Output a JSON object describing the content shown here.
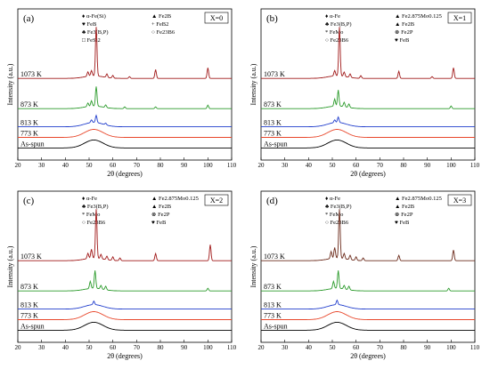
{
  "chart_data": [
    {
      "type": "line",
      "panel_label": "(a)",
      "box_label": "X=0",
      "xlabel": "2θ (degrees)",
      "ylabel": "Intensity (a.u.)",
      "xlim": [
        20,
        110
      ],
      "x_ticks": [
        "20",
        "30",
        "40",
        "50",
        "60",
        "70",
        "80",
        "90",
        "100",
        "110"
      ],
      "legend": [
        {
          "sym": "♦",
          "text": "α-Fe(Si)"
        },
        {
          "sym": "♥",
          "text": "FeB"
        },
        {
          "sym": "♣",
          "text": "Fe3(B,P)"
        },
        {
          "sym": "□",
          "text": "FeSi2"
        },
        {
          "sym": "▲",
          "text": "Fe2B"
        },
        {
          "sym": "+",
          "text": "FeB2"
        },
        {
          "sym": "○",
          "text": "Fe23B6"
        }
      ],
      "series": [
        {
          "name": "As-spun",
          "color": "#000000",
          "kind": "amorphous",
          "peaks": []
        },
        {
          "name": "773 K",
          "color": "#e8462a",
          "kind": "amorphous",
          "peaks": []
        },
        {
          "name": "813 K",
          "color": "#1f3ccc",
          "kind": "partial",
          "peaks": [
            [
              53,
              8
            ],
            [
              51,
              3
            ],
            [
              57,
              2
            ]
          ]
        },
        {
          "name": "873 K",
          "color": "#2a9a2a",
          "kind": "crystal",
          "peaks": [
            [
              53,
              22
            ],
            [
              51,
              6
            ],
            [
              49.5,
              4
            ],
            [
              57,
              3
            ],
            [
              65,
              2
            ],
            [
              78,
              2
            ],
            [
              100,
              4
            ]
          ]
        },
        {
          "name": "1073 K",
          "color": "#a01818",
          "kind": "crystal",
          "peaks": [
            [
              53,
              55
            ],
            [
              51,
              6
            ],
            [
              49.5,
              5
            ],
            [
              57.5,
              4
            ],
            [
              60,
              3
            ],
            [
              67,
              2
            ],
            [
              78,
              10
            ],
            [
              100,
              12
            ]
          ]
        }
      ]
    },
    {
      "type": "line",
      "panel_label": "(b)",
      "box_label": "X=1",
      "xlabel": "2θ (degrees)",
      "ylabel": "Intensity (a.u.)",
      "xlim": [
        20,
        110
      ],
      "x_ticks": [
        "20",
        "30",
        "40",
        "50",
        "60",
        "70",
        "80",
        "90",
        "100",
        "110"
      ],
      "legend": [
        {
          "sym": "♦",
          "text": "α-Fe"
        },
        {
          "sym": "♣",
          "text": "Fe3(B,P)"
        },
        {
          "sym": "*",
          "text": "FeMo"
        },
        {
          "sym": "○",
          "text": "Fe23B6"
        },
        {
          "sym": "▲",
          "text": "Fe2.875Mo0.125"
        },
        {
          "sym": "▲",
          "text": "Fe2B"
        },
        {
          "sym": "⊗",
          "text": "Fe2P"
        },
        {
          "sym": "♥",
          "text": "FeB"
        }
      ],
      "series": [
        {
          "name": "As-spun",
          "color": "#000000",
          "kind": "amorphous",
          "peaks": []
        },
        {
          "name": "773 K",
          "color": "#e8462a",
          "kind": "amorphous",
          "peaks": []
        },
        {
          "name": "813 K",
          "color": "#1f3ccc",
          "kind": "partial",
          "peaks": [
            [
              52.5,
              6
            ],
            [
              51,
              3
            ]
          ]
        },
        {
          "name": "873 K",
          "color": "#2a9a2a",
          "kind": "crystal",
          "peaks": [
            [
              52.5,
              18
            ],
            [
              51,
              8
            ],
            [
              55,
              5
            ],
            [
              57,
              4
            ],
            [
              100,
              3
            ]
          ]
        },
        {
          "name": "1073 K",
          "color": "#a01818",
          "kind": "crystal",
          "peaks": [
            [
              53,
              55
            ],
            [
              51,
              6
            ],
            [
              55,
              5
            ],
            [
              57.5,
              4
            ],
            [
              62,
              3
            ],
            [
              78,
              8
            ],
            [
              92,
              2
            ],
            [
              101,
              12
            ]
          ]
        }
      ]
    },
    {
      "type": "line",
      "panel_label": "(c)",
      "box_label": "X=2",
      "xlabel": "2θ (degrees)",
      "ylabel": "Intensity (a.u.)",
      "xlim": [
        20,
        110
      ],
      "x_ticks": [
        "20",
        "30",
        "40",
        "50",
        "60",
        "70",
        "80",
        "90",
        "100",
        "110"
      ],
      "legend": [
        {
          "sym": "♦",
          "text": "α-Fe"
        },
        {
          "sym": "♣",
          "text": "Fe3(B,P)"
        },
        {
          "sym": "*",
          "text": "FeMo"
        },
        {
          "sym": "○",
          "text": "Fe23B6"
        },
        {
          "sym": "▲",
          "text": "Fe2.875Mo0.125"
        },
        {
          "sym": "▲",
          "text": "Fe2B"
        },
        {
          "sym": "⊗",
          "text": "Fe2P"
        },
        {
          "sym": "♥",
          "text": "FeB"
        }
      ],
      "series": [
        {
          "name": "As-spun",
          "color": "#000000",
          "kind": "amorphous",
          "peaks": []
        },
        {
          "name": "773 K",
          "color": "#e8462a",
          "kind": "amorphous",
          "peaks": []
        },
        {
          "name": "813 K",
          "color": "#1f3ccc",
          "kind": "partial",
          "peaks": [
            [
              52,
              4
            ]
          ]
        },
        {
          "name": "873 K",
          "color": "#2a9a2a",
          "kind": "crystal",
          "peaks": [
            [
              52.5,
              20
            ],
            [
              50.5,
              8
            ],
            [
              55,
              4
            ],
            [
              57,
              4
            ],
            [
              100,
              3
            ]
          ]
        },
        {
          "name": "1073 K",
          "color": "#a01818",
          "kind": "crystal",
          "peaks": [
            [
              53,
              55
            ],
            [
              51,
              10
            ],
            [
              49.5,
              6
            ],
            [
              55,
              5
            ],
            [
              57.5,
              4
            ],
            [
              60,
              4
            ],
            [
              63,
              3
            ],
            [
              78,
              8
            ],
            [
              101,
              18
            ]
          ]
        }
      ]
    },
    {
      "type": "line",
      "panel_label": "(d)",
      "box_label": "X=3",
      "xlabel": "2θ (degrees)",
      "ylabel": "Intensity (a.u.)",
      "xlim": [
        20,
        110
      ],
      "x_ticks": [
        "20",
        "30",
        "40",
        "50",
        "60",
        "70",
        "80",
        "90",
        "100",
        "110"
      ],
      "legend": [
        {
          "sym": "♦",
          "text": "α-Fe"
        },
        {
          "sym": "♣",
          "text": "Fe3(B,P)"
        },
        {
          "sym": "*",
          "text": "FeMo"
        },
        {
          "sym": "○",
          "text": "Fe23B6"
        },
        {
          "sym": "▲",
          "text": "Fe2.875Mo0.125"
        },
        {
          "sym": "▲",
          "text": "Fe2B"
        },
        {
          "sym": "⊗",
          "text": "Fe2P"
        },
        {
          "sym": "♥",
          "text": "FeB"
        }
      ],
      "series": [
        {
          "name": "As-spun",
          "color": "#000000",
          "kind": "amorphous",
          "peaks": []
        },
        {
          "name": "773 K",
          "color": "#e8462a",
          "kind": "amorphous",
          "peaks": []
        },
        {
          "name": "813 K",
          "color": "#1f3ccc",
          "kind": "partial",
          "peaks": [
            [
              52,
              5
            ]
          ]
        },
        {
          "name": "873 K",
          "color": "#2a9a2a",
          "kind": "crystal",
          "peaks": [
            [
              52.5,
              20
            ],
            [
              50.5,
              8
            ],
            [
              55,
              4
            ],
            [
              57,
              4
            ],
            [
              99,
              3
            ]
          ]
        },
        {
          "name": "1073 K",
          "color": "#6b2a1a",
          "kind": "crystal",
          "peaks": [
            [
              53,
              55
            ],
            [
              51,
              12
            ],
            [
              49.5,
              8
            ],
            [
              55,
              6
            ],
            [
              57.5,
              5
            ],
            [
              60,
              4
            ],
            [
              63,
              3
            ],
            [
              78,
              6
            ],
            [
              101,
              12
            ]
          ]
        }
      ]
    }
  ]
}
